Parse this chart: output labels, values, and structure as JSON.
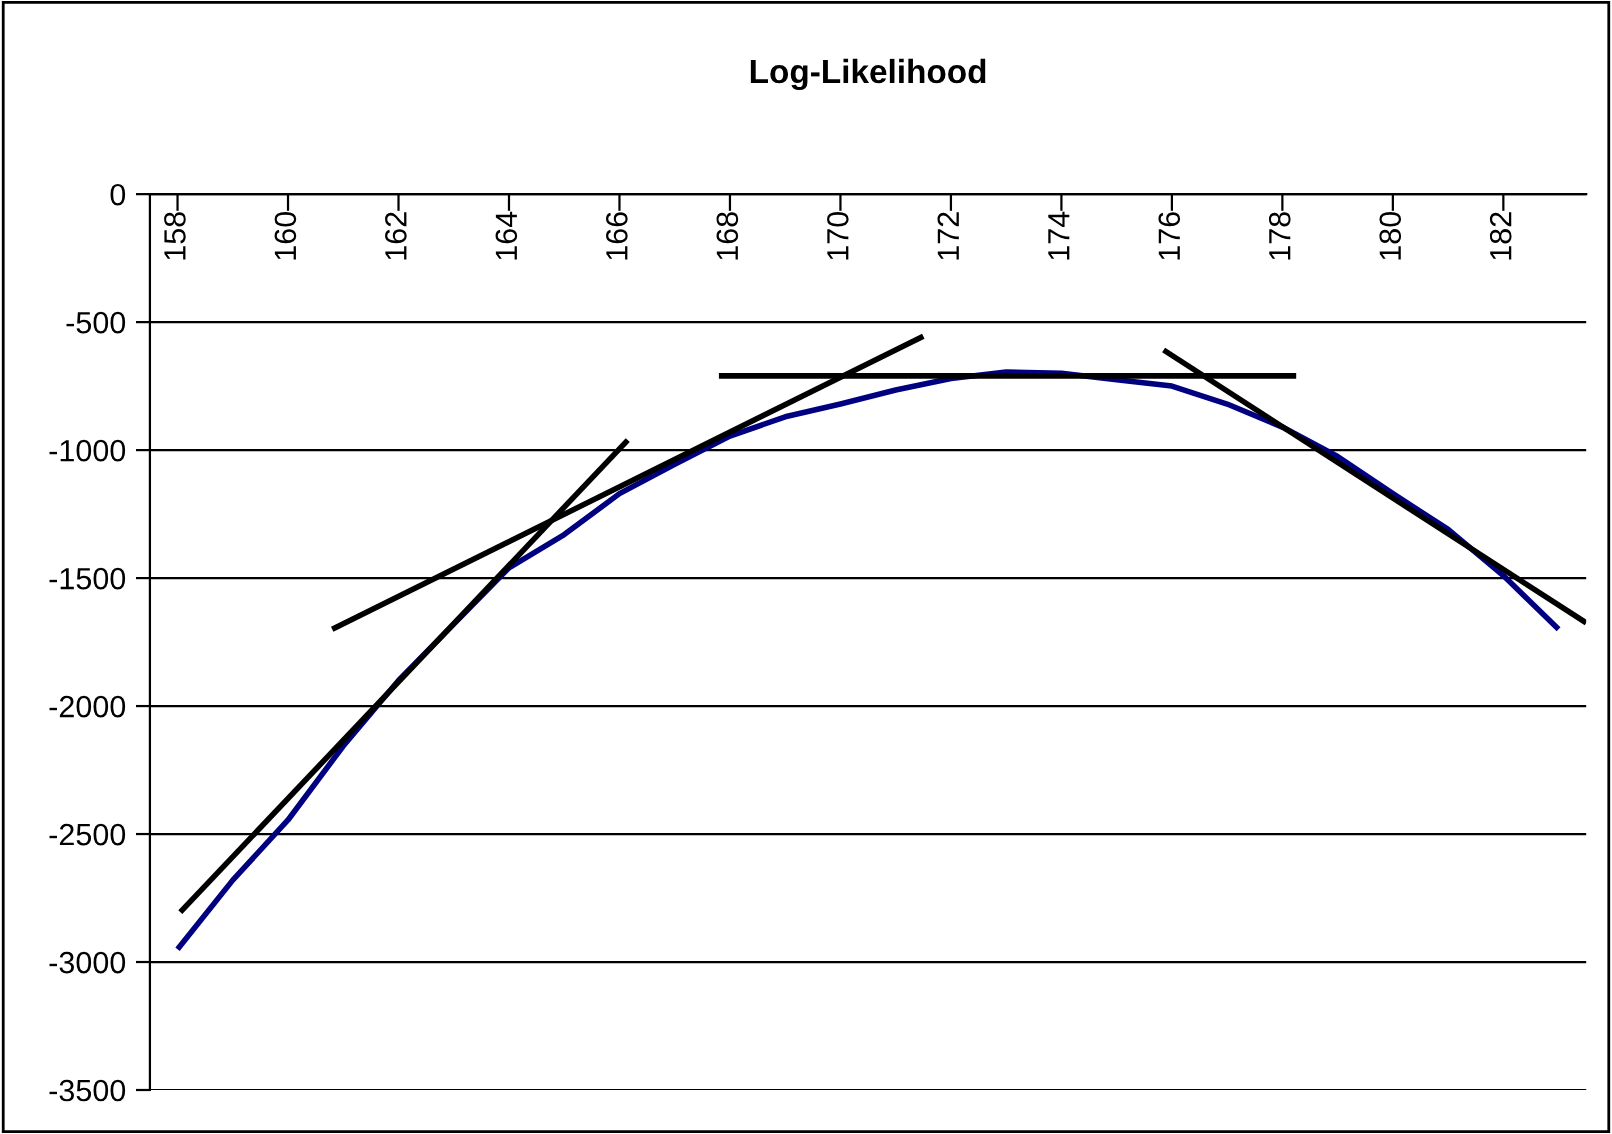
{
  "chart_data": {
    "type": "line",
    "title": "Log-Likelihood",
    "xlim": [
      157.5,
      183.5
    ],
    "xticks": [
      {
        "value": 158,
        "label": "158"
      },
      {
        "value": 160,
        "label": "160"
      },
      {
        "value": 162,
        "label": "162"
      },
      {
        "value": 164,
        "label": "164"
      },
      {
        "value": 166,
        "label": "166"
      },
      {
        "value": 168,
        "label": "168"
      },
      {
        "value": 170,
        "label": "170"
      },
      {
        "value": 172,
        "label": "172"
      },
      {
        "value": 174,
        "label": "174"
      },
      {
        "value": 176,
        "label": "176"
      },
      {
        "value": 178,
        "label": "178"
      },
      {
        "value": 180,
        "label": "180"
      },
      {
        "value": 182,
        "label": "182"
      }
    ],
    "ylim": [
      -3500,
      0
    ],
    "yticks": [
      0,
      -500,
      -1000,
      -1500,
      -2000,
      -2500,
      -3000,
      -3500
    ],
    "grid": "y",
    "marker": "none",
    "line_style": "solid",
    "series": [
      {
        "color": "#000080",
        "x": [
          158,
          159,
          160,
          161,
          162,
          163,
          164,
          165,
          166,
          167,
          168,
          169,
          170,
          171,
          172,
          173,
          174,
          175,
          176,
          177,
          178,
          179,
          180,
          181,
          182,
          183
        ],
        "values": [
          -2950,
          -2680,
          -2445,
          -2156,
          -1900,
          -1680,
          -1460,
          -1330,
          -1170,
          -1055,
          -945,
          -870,
          -820,
          -765,
          -720,
          -695,
          -700,
          -725,
          -750,
          -820,
          -910,
          -1025,
          -1170,
          -1310,
          -1490,
          -1700
        ]
      },
      {
        "color": "#000000",
        "x": [
          167.8,
          178.25
        ],
        "values": [
          -710,
          -710
        ]
      },
      {
        "color": "#000000",
        "x": [
          160.8,
          171.5
        ],
        "values": [
          -1700,
          -555
        ]
      },
      {
        "color": "#000000",
        "x": [
          158.05,
          166.15
        ],
        "values": [
          -2805,
          -961
        ]
      },
      {
        "color": "#000000",
        "x": [
          175.85,
          183.5
        ],
        "values": [
          -609,
          -1675
        ]
      }
    ]
  }
}
